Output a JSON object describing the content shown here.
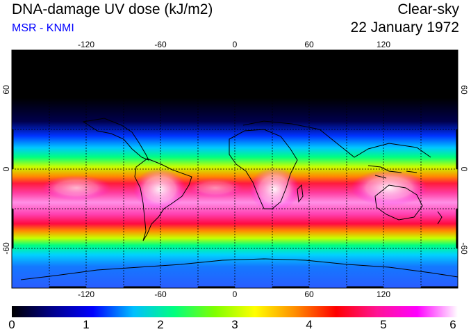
{
  "header": {
    "title": "DNA-damage UV dose (kJ/m2)",
    "credit": "MSR - KNMI",
    "condition": "Clear-sky",
    "date": "22 January 1972"
  },
  "colors": {
    "credit": "#0000ff",
    "scale": [
      "#000000",
      "#00008b",
      "#0000ff",
      "#00bfff",
      "#00ff7f",
      "#7fff00",
      "#ffff00",
      "#ff8c00",
      "#ff0000",
      "#ff1493",
      "#ff00ff",
      "#ffffff"
    ]
  },
  "map": {
    "lon_ticks": [
      "-120",
      "-60",
      "0",
      "60",
      "120"
    ],
    "lat_ticks": [
      "60",
      "0",
      "-60"
    ],
    "lon_range": [
      -180,
      180
    ],
    "lat_range": [
      -90,
      90
    ],
    "grid_spacing_deg": 30,
    "grid_style": "dotted"
  },
  "colorbar": {
    "min": 0,
    "max": 6,
    "tick_labels": [
      "0",
      "1",
      "2",
      "3",
      "4",
      "5",
      "6"
    ]
  }
}
